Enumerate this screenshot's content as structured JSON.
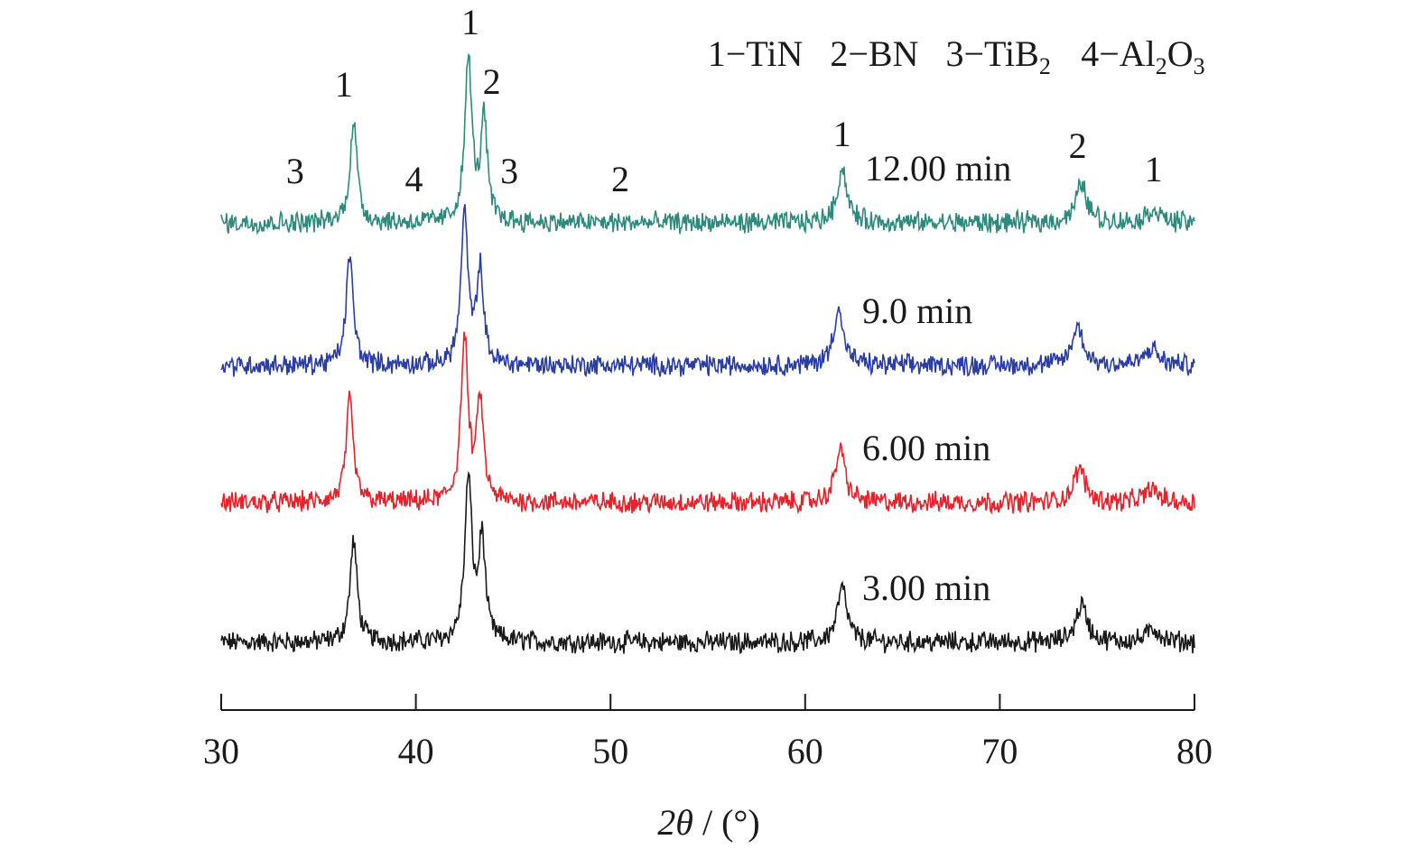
{
  "chart_data": {
    "type": "line",
    "title": "",
    "xlabel_symbol": "2θ",
    "xlabel_unit": " / (°)",
    "ylabel": "",
    "xlim": [
      30,
      80
    ],
    "xticks": [
      30,
      40,
      50,
      60,
      70,
      80
    ],
    "grid": false,
    "legend": {
      "placement": "top-right",
      "entries": [
        {
          "id": "1",
          "sep": "−",
          "name": "TiN",
          "sub": "",
          "tail": "",
          "sub2": ""
        },
        {
          "id": "2",
          "sep": "−",
          "name": "BN",
          "sub": "",
          "tail": "",
          "sub2": ""
        },
        {
          "id": "3",
          "sep": "−",
          "name": "TiB",
          "sub": "2",
          "tail": "",
          "sub2": ""
        },
        {
          "id": "4",
          "sep": "−",
          "name": "Al",
          "sub": "2",
          "tail": "O",
          "sub2": "3"
        }
      ]
    },
    "series": [
      {
        "name": "3.00 min",
        "color": "#1a1a1a",
        "peaks": [
          {
            "x": 36.8,
            "h": 0.75,
            "w": 0.22
          },
          {
            "x": 42.7,
            "h": 1.2,
            "w": 0.22
          },
          {
            "x": 43.4,
            "h": 0.75,
            "w": 0.2
          },
          {
            "x": 61.9,
            "h": 0.4,
            "w": 0.3
          },
          {
            "x": 74.2,
            "h": 0.28,
            "w": 0.35
          },
          {
            "x": 77.9,
            "h": 0.1,
            "w": 0.4
          }
        ]
      },
      {
        "name": "6.00 min",
        "color": "#e8222a",
        "peaks": [
          {
            "x": 36.6,
            "h": 0.75,
            "w": 0.22
          },
          {
            "x": 42.5,
            "h": 1.2,
            "w": 0.22
          },
          {
            "x": 43.3,
            "h": 0.75,
            "w": 0.2
          },
          {
            "x": 61.8,
            "h": 0.4,
            "w": 0.3
          },
          {
            "x": 74.1,
            "h": 0.25,
            "w": 0.35
          },
          {
            "x": 77.8,
            "h": 0.1,
            "w": 0.4
          }
        ]
      },
      {
        "name": "9.0 min",
        "color": "#2b3ea8",
        "peaks": [
          {
            "x": 36.6,
            "h": 0.8,
            "w": 0.22
          },
          {
            "x": 42.5,
            "h": 1.1,
            "w": 0.22
          },
          {
            "x": 43.3,
            "h": 0.7,
            "w": 0.2
          },
          {
            "x": 61.7,
            "h": 0.42,
            "w": 0.3
          },
          {
            "x": 74.0,
            "h": 0.28,
            "w": 0.35
          },
          {
            "x": 77.8,
            "h": 0.12,
            "w": 0.4
          }
        ]
      },
      {
        "name": "12.00 min",
        "color": "#2f8a7d",
        "peaks": [
          {
            "x": 36.8,
            "h": 0.75,
            "w": 0.22
          },
          {
            "x": 42.7,
            "h": 1.2,
            "w": 0.22
          },
          {
            "x": 43.5,
            "h": 0.75,
            "w": 0.2
          },
          {
            "x": 61.9,
            "h": 0.4,
            "w": 0.3
          },
          {
            "x": 74.2,
            "h": 0.28,
            "w": 0.35
          },
          {
            "x": 77.9,
            "h": 0.1,
            "w": 0.4
          }
        ]
      }
    ],
    "peak_labels": [
      {
        "text": "3",
        "x": 33.8
      },
      {
        "text": "1",
        "x": 36.3
      },
      {
        "text": "4",
        "x": 39.9
      },
      {
        "text": "1",
        "x": 42.8
      },
      {
        "text": "2",
        "x": 43.9
      },
      {
        "text": "3",
        "x": 44.8
      },
      {
        "text": "2",
        "x": 50.5
      },
      {
        "text": "1",
        "x": 61.9
      },
      {
        "text": "2",
        "x": 74.0
      },
      {
        "text": "1",
        "x": 77.9
      }
    ]
  }
}
